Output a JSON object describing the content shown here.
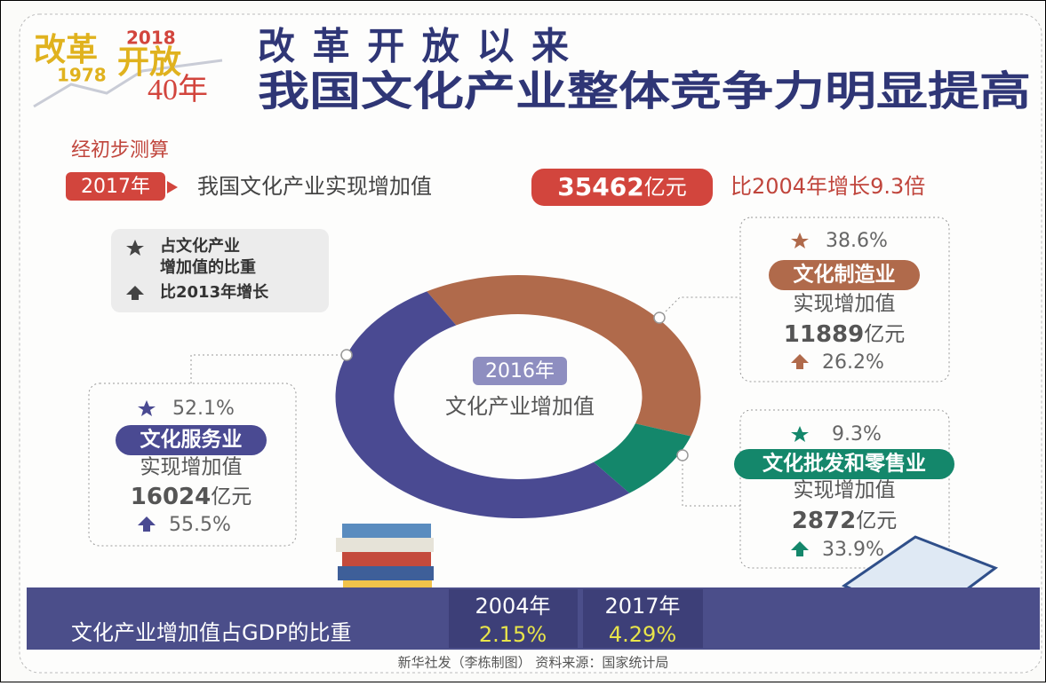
{
  "badge": {
    "top": "改革",
    "year_new": "2018",
    "year_old": "1978",
    "middle": "开放",
    "years": "40年"
  },
  "title": [
    "改革开放以来",
    "我国文化产业整体竞争力明显提高"
  ],
  "intro": {
    "note": "经初步测算",
    "year": "2017年",
    "text": "我国文化产业实现增加值",
    "amount": "35462",
    "unit": "亿元",
    "growth": "比2004年增长9.3倍"
  },
  "legend": {
    "share": [
      "占文化产业",
      "增加值的比重"
    ],
    "growth": "比2013年增长"
  },
  "chart_data": {
    "type": "pie",
    "center_label": [
      "2016年",
      "文化产业增加值"
    ],
    "categories": [
      "文化制造业",
      "文化批发和零售业",
      "文化服务业"
    ],
    "values": [
      38.6,
      9.3,
      52.1
    ],
    "value_labels": [
      "38.6%",
      "9.3%",
      "52.1%"
    ],
    "colors": [
      "#b06a4b",
      "#14876b",
      "#4a4a92"
    ],
    "value_caption": "实现增加值",
    "amounts": [
      11889,
      2872,
      16024
    ],
    "amount_unit": "亿元",
    "growth": [
      26.2,
      33.9,
      55.5
    ],
    "growth_labels": [
      "26.2%",
      "33.9%",
      "55.5%"
    ]
  },
  "gdp": {
    "label": "文化产业增加值占GDP的比重",
    "years": [
      "2004年",
      "2017年"
    ],
    "values": [
      "2.15%",
      "4.29%"
    ]
  },
  "footer": "新华社发（李栋制图） 资料来源：国家统计局"
}
